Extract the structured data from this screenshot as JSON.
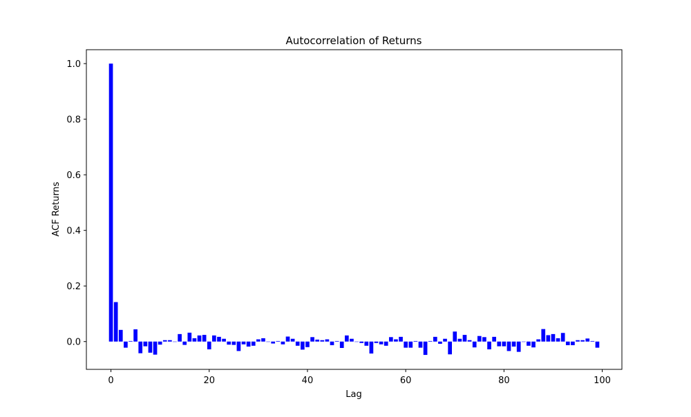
{
  "chart_data": {
    "type": "bar",
    "title": "Autocorrelation of Returns",
    "xlabel": "Lag",
    "ylabel": "ACF Returns",
    "xlim": [
      -5,
      104
    ],
    "ylim": [
      -0.1,
      1.05
    ],
    "xticks": [
      0,
      20,
      40,
      60,
      80,
      100
    ],
    "xtick_labels": [
      "0",
      "20",
      "40",
      "60",
      "80",
      "100"
    ],
    "yticks": [
      0.0,
      0.2,
      0.4,
      0.6,
      0.8,
      1.0
    ],
    "ytick_labels": [
      "0.0",
      "0.2",
      "0.4",
      "0.6",
      "0.8",
      "1.0"
    ],
    "grid": false,
    "legend": false,
    "bar_color": "#0000ff",
    "x": [
      0,
      1,
      2,
      3,
      4,
      5,
      6,
      7,
      8,
      9,
      10,
      11,
      12,
      13,
      14,
      15,
      16,
      17,
      18,
      19,
      20,
      21,
      22,
      23,
      24,
      25,
      26,
      27,
      28,
      29,
      30,
      31,
      32,
      33,
      34,
      35,
      36,
      37,
      38,
      39,
      40,
      41,
      42,
      43,
      44,
      45,
      46,
      47,
      48,
      49,
      50,
      51,
      52,
      53,
      54,
      55,
      56,
      57,
      58,
      59,
      60,
      61,
      62,
      63,
      64,
      65,
      66,
      67,
      68,
      69,
      70,
      71,
      72,
      73,
      74,
      75,
      76,
      77,
      78,
      79,
      80,
      81,
      82,
      83,
      84,
      85,
      86,
      87,
      88,
      89,
      90,
      91,
      92,
      93,
      94,
      95,
      96,
      97,
      98,
      99
    ],
    "values": [
      1.0,
      0.142,
      0.042,
      -0.022,
      0.002,
      0.044,
      -0.042,
      -0.017,
      -0.04,
      -0.047,
      -0.011,
      0.005,
      0.005,
      0.0,
      0.027,
      -0.012,
      0.032,
      0.012,
      0.022,
      0.024,
      -0.028,
      0.022,
      0.017,
      0.01,
      -0.011,
      -0.012,
      -0.034,
      -0.01,
      -0.018,
      -0.015,
      0.008,
      0.012,
      0.0,
      -0.007,
      0.002,
      -0.01,
      0.018,
      0.01,
      -0.015,
      -0.029,
      -0.02,
      0.016,
      0.007,
      0.005,
      0.008,
      -0.013,
      0.002,
      -0.023,
      0.022,
      0.01,
      0.0,
      -0.005,
      -0.015,
      -0.043,
      -0.005,
      -0.01,
      -0.015,
      0.016,
      0.008,
      0.017,
      -0.022,
      -0.022,
      0.002,
      -0.022,
      -0.048,
      0.002,
      0.017,
      -0.008,
      0.01,
      -0.046,
      0.036,
      0.01,
      0.024,
      0.005,
      -0.021,
      0.02,
      0.016,
      -0.028,
      0.017,
      -0.017,
      -0.017,
      -0.034,
      -0.018,
      -0.037,
      0.0,
      -0.015,
      -0.021,
      0.008,
      0.045,
      0.023,
      0.027,
      0.012,
      0.031,
      -0.013,
      -0.013,
      0.005,
      0.005,
      0.011,
      0.002,
      -0.022
    ]
  }
}
